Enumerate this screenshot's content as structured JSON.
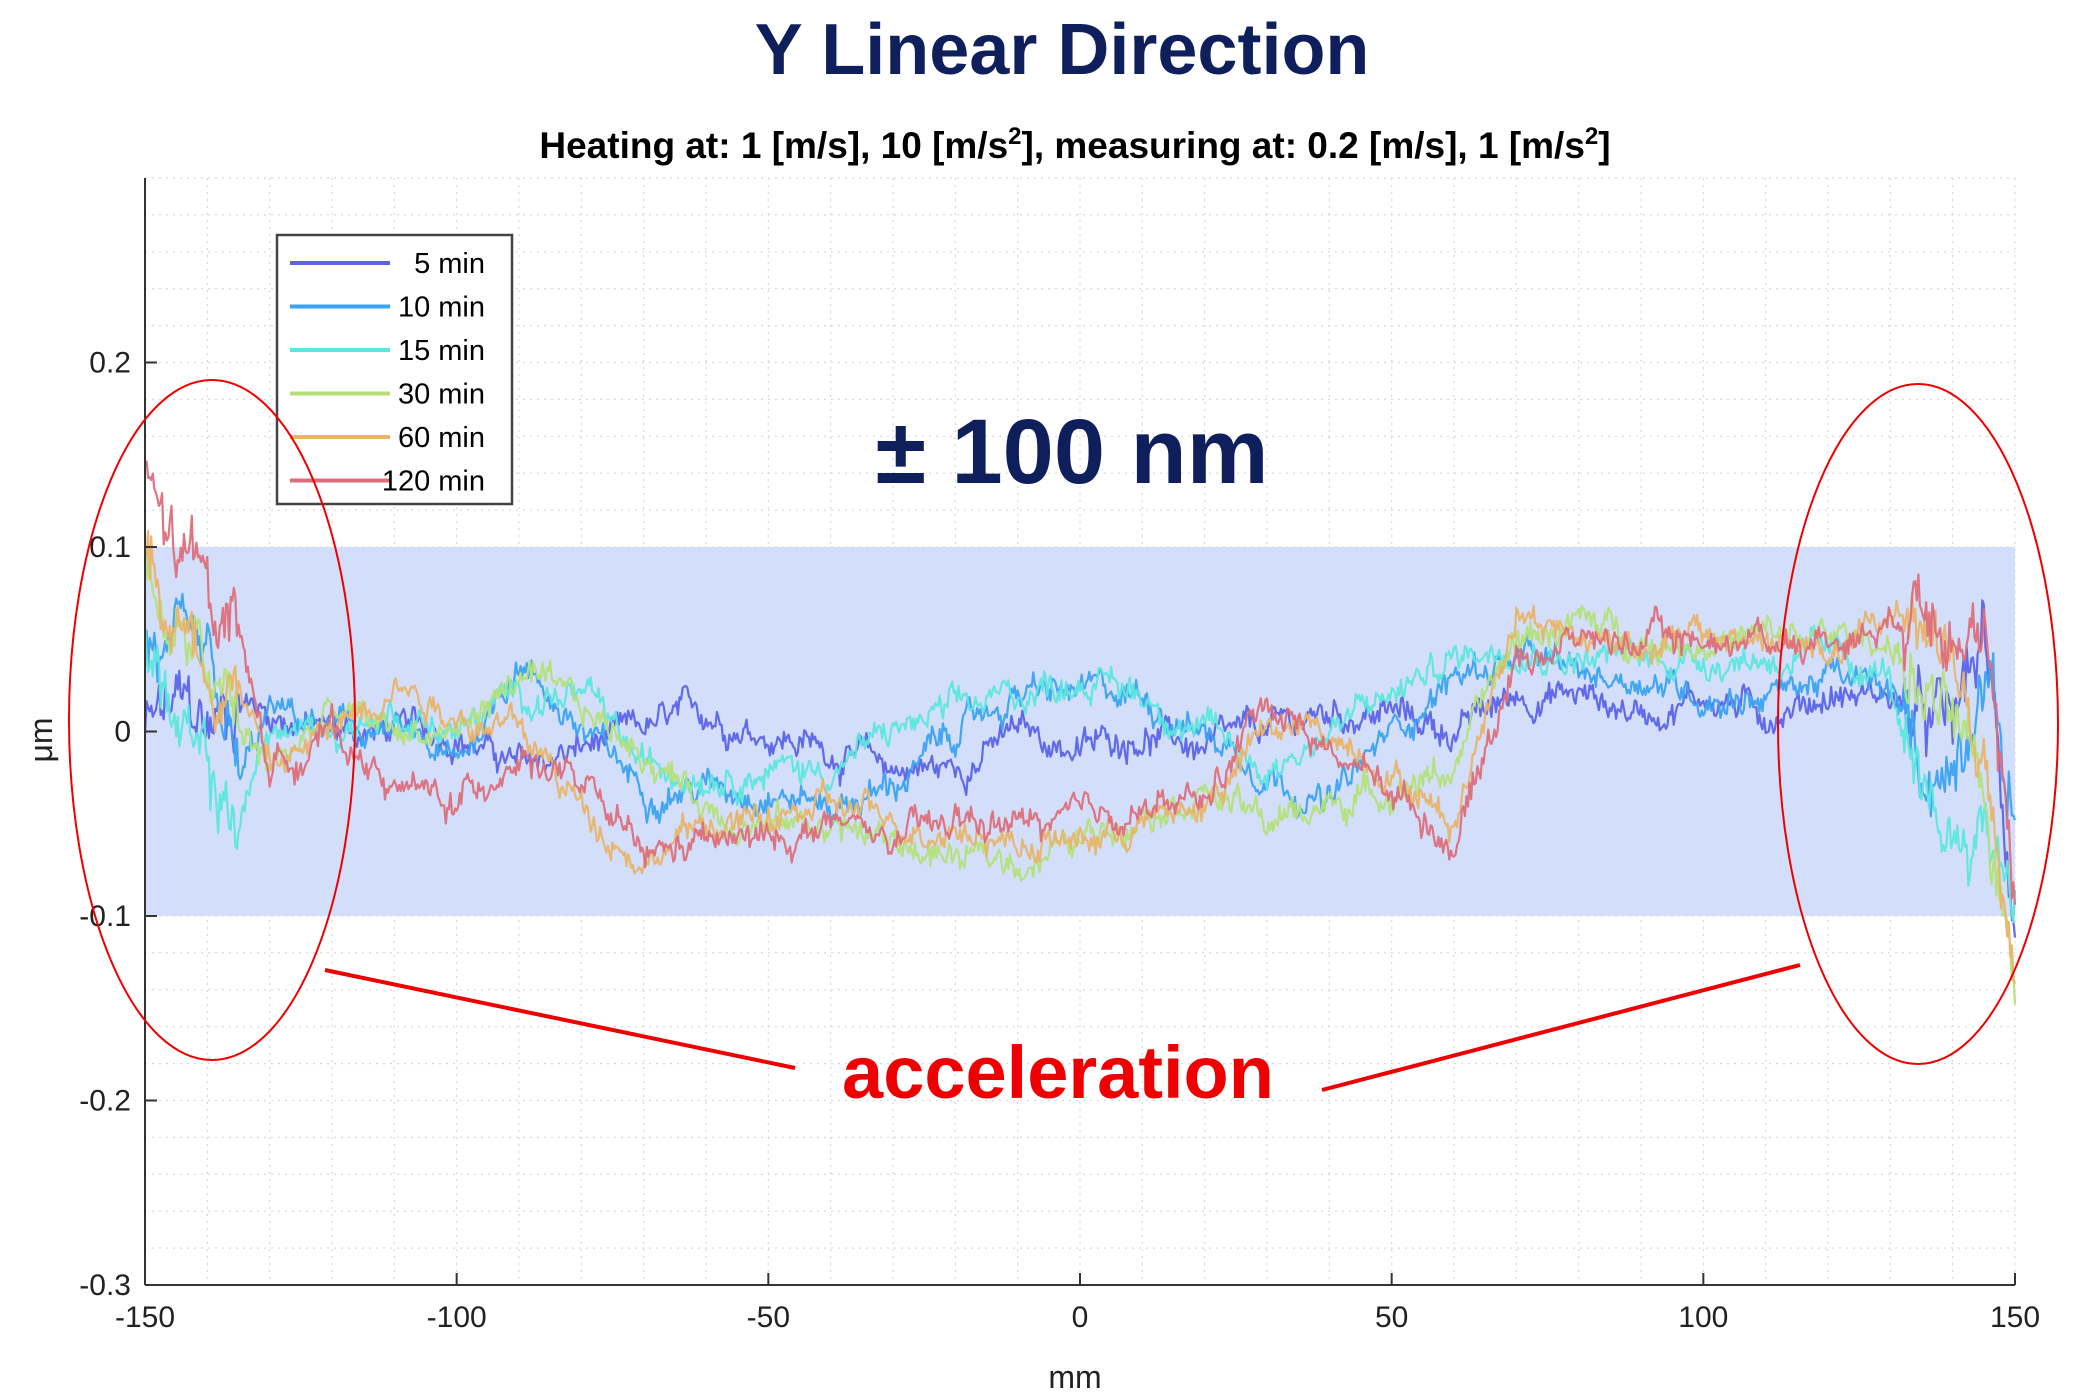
{
  "chart_data": {
    "type": "line",
    "title": "Y Linear Direction",
    "subtitle": {
      "prefix": "Heating at: 1 [m/s], 10 [m/s",
      "sup1": "2",
      "middle": "], measuring at: 0.2 [m/s], 1 [m/s",
      "sup2": "2",
      "suffix": "]"
    },
    "xlabel": "mm",
    "ylabel": "μm",
    "xlim": [
      -150,
      150
    ],
    "ylim": [
      -0.3,
      0.3
    ],
    "grid": true,
    "legend_position": "top-left",
    "x_ticks": [
      {
        "value": -150,
        "label": "-150"
      },
      {
        "value": -100,
        "label": "-100"
      },
      {
        "value": -50,
        "label": "-50"
      },
      {
        "value": 0,
        "label": "0"
      },
      {
        "value": 50,
        "label": "50"
      },
      {
        "value": 100,
        "label": "100"
      },
      {
        "value": 150,
        "label": "150"
      }
    ],
    "y_ticks": [
      {
        "value": -0.3,
        "label": "-0.3"
      },
      {
        "value": -0.2,
        "label": "-0.2"
      },
      {
        "value": -0.1,
        "label": "-0.1"
      },
      {
        "value": 0,
        "label": "0"
      },
      {
        "value": 0.1,
        "label": "0.1"
      },
      {
        "value": 0.2,
        "label": "0.2"
      }
    ],
    "band": {
      "from": -0.1,
      "to": 0.1,
      "label": "± 100 nm",
      "color": "#d3defa"
    },
    "annotation": {
      "label": "acceleration",
      "color": "#ee0000",
      "regions": [
        [
          -150,
          -127
        ],
        [
          128,
          152
        ]
      ]
    },
    "series": [
      {
        "name": "5 min",
        "color": "#5b63e8",
        "x": [
          -150,
          -145,
          -140,
          -135,
          -130,
          -120,
          -110,
          -100,
          -90,
          -80,
          -70,
          -60,
          -50,
          -40,
          -30,
          -20,
          -10,
          0,
          10,
          20,
          30,
          40,
          50,
          60,
          70,
          80,
          90,
          100,
          110,
          120,
          130,
          135,
          140,
          145,
          150
        ],
        "y": [
          0.0,
          0.01,
          0.0,
          0.02,
          0.01,
          0.0,
          0.0,
          0.0,
          -0.02,
          -0.01,
          0.0,
          0.01,
          0.0,
          -0.01,
          -0.02,
          -0.02,
          0.0,
          -0.01,
          0.0,
          -0.01,
          0.0,
          0.01,
          0.01,
          0.0,
          0.02,
          0.02,
          0.01,
          0.02,
          0.01,
          0.02,
          0.02,
          0.0,
          0.0,
          0.05,
          -0.1
        ]
      },
      {
        "name": "10 min",
        "color": "#3aa2f0",
        "x": [
          -150,
          -145,
          -140,
          -135,
          -130,
          -120,
          -110,
          -100,
          -90,
          -80,
          -70,
          -60,
          -50,
          -40,
          -30,
          -20,
          -10,
          0,
          10,
          20,
          30,
          40,
          50,
          60,
          70,
          80,
          90,
          100,
          110,
          120,
          130,
          135,
          140,
          145,
          150
        ],
        "y": [
          0.05,
          0.03,
          0.02,
          -0.03,
          0.01,
          0.0,
          0.0,
          -0.02,
          0.04,
          0.0,
          -0.03,
          -0.03,
          -0.03,
          -0.04,
          -0.03,
          0.0,
          0.02,
          0.02,
          0.02,
          0.0,
          -0.02,
          -0.04,
          0.0,
          0.03,
          0.04,
          0.03,
          0.03,
          0.02,
          0.02,
          0.03,
          0.02,
          -0.02,
          -0.02,
          0.05,
          -0.05
        ]
      },
      {
        "name": "15 min",
        "color": "#5ee6de",
        "x": [
          -150,
          -145,
          -140,
          -135,
          -130,
          -120,
          -110,
          -100,
          -90,
          -80,
          -70,
          -60,
          -50,
          -40,
          -30,
          -20,
          -10,
          0,
          10,
          20,
          30,
          40,
          50,
          60,
          70,
          80,
          90,
          100,
          110,
          120,
          130,
          135,
          140,
          145,
          150
        ],
        "y": [
          0.06,
          0.0,
          -0.03,
          -0.05,
          0.0,
          0.0,
          0.01,
          0.0,
          0.02,
          0.02,
          -0.02,
          -0.02,
          -0.02,
          -0.02,
          0.0,
          0.01,
          0.02,
          0.03,
          0.02,
          0.0,
          -0.02,
          0.0,
          0.02,
          0.04,
          0.05,
          0.04,
          0.04,
          0.04,
          0.04,
          0.04,
          0.03,
          -0.06,
          -0.06,
          -0.05,
          -0.08
        ]
      },
      {
        "name": "30 min",
        "color": "#b4e07a",
        "x": [
          -150,
          -145,
          -140,
          -135,
          -130,
          -120,
          -110,
          -100,
          -90,
          -80,
          -70,
          -60,
          -50,
          -40,
          -30,
          -20,
          -10,
          0,
          10,
          20,
          30,
          40,
          50,
          60,
          70,
          80,
          90,
          100,
          110,
          120,
          130,
          135,
          140,
          145,
          150
        ],
        "y": [
          0.08,
          0.05,
          0.03,
          0.0,
          -0.02,
          0.01,
          0.0,
          0.0,
          0.03,
          0.01,
          -0.01,
          -0.04,
          -0.05,
          -0.05,
          -0.06,
          -0.07,
          -0.07,
          -0.06,
          -0.04,
          -0.03,
          -0.05,
          -0.04,
          -0.03,
          -0.02,
          0.05,
          0.06,
          0.05,
          0.05,
          0.05,
          0.05,
          0.05,
          0.02,
          0.0,
          -0.05,
          -0.12
        ]
      },
      {
        "name": "60 min",
        "color": "#e8b46a",
        "x": [
          -150,
          -145,
          -140,
          -135,
          -130,
          -120,
          -110,
          -100,
          -90,
          -80,
          -70,
          -60,
          -50,
          -40,
          -30,
          -20,
          -10,
          0,
          10,
          20,
          30,
          40,
          50,
          60,
          70,
          80,
          90,
          100,
          110,
          120,
          130,
          135,
          140,
          145,
          150
        ],
        "y": [
          0.1,
          0.06,
          0.04,
          0.03,
          -0.02,
          0.0,
          0.03,
          0.01,
          0.0,
          -0.04,
          -0.07,
          -0.05,
          -0.05,
          -0.04,
          -0.05,
          -0.05,
          -0.06,
          -0.06,
          -0.05,
          -0.04,
          0.0,
          0.0,
          -0.02,
          -0.05,
          0.07,
          0.05,
          0.05,
          0.05,
          0.05,
          0.04,
          0.06,
          0.07,
          0.04,
          -0.02,
          -0.15
        ]
      },
      {
        "name": "120 min",
        "color": "#dc6e7a",
        "x": [
          -150,
          -145,
          -140,
          -135,
          -130,
          -120,
          -110,
          -100,
          -90,
          -80,
          -70,
          -60,
          -50,
          -40,
          -30,
          -20,
          -10,
          0,
          10,
          20,
          30,
          40,
          50,
          60,
          70,
          80,
          90,
          100,
          110,
          120,
          130,
          135,
          140,
          145,
          150
        ],
        "y": [
          0.14,
          0.09,
          0.08,
          0.06,
          -0.02,
          0.0,
          -0.03,
          -0.04,
          -0.01,
          -0.03,
          -0.07,
          -0.06,
          -0.06,
          -0.05,
          -0.06,
          -0.05,
          -0.05,
          -0.05,
          -0.04,
          -0.04,
          0.02,
          -0.01,
          -0.03,
          -0.06,
          0.04,
          0.05,
          0.05,
          0.05,
          0.05,
          0.05,
          0.06,
          0.08,
          0.08,
          0.04,
          -0.1
        ]
      }
    ]
  }
}
